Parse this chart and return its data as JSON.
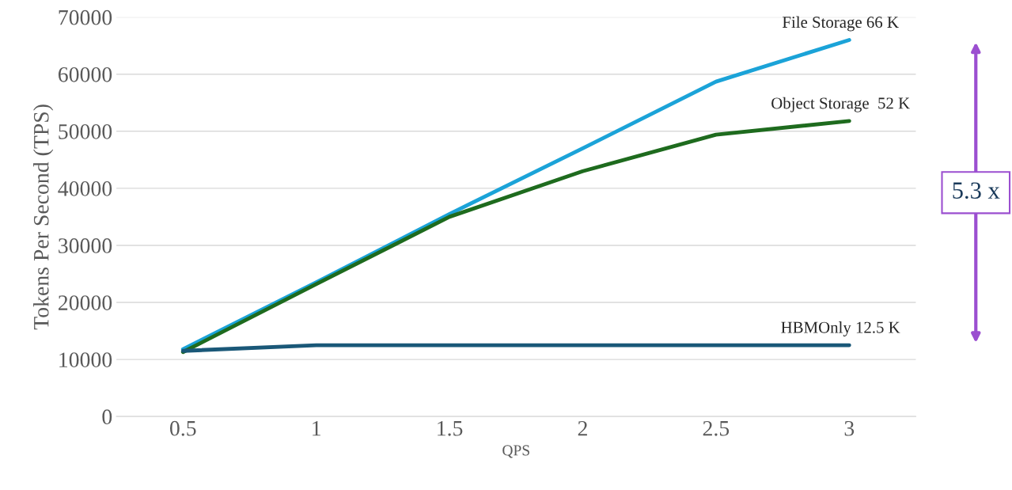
{
  "chart_data": {
    "type": "line",
    "xlabel": "QPS",
    "ylabel": "Tokens Per Second (TPS)",
    "categories": [
      "0.5",
      "1",
      "1.5",
      "2",
      "2.5",
      "3"
    ],
    "series": [
      {
        "name": "File Storage 66 K",
        "color": "#1ba3d8",
        "values": [
          11800,
          23500,
          35500,
          47000,
          58700,
          66000
        ]
      },
      {
        "name": "Object Storage  52 K",
        "color": "#1e6b1e",
        "values": [
          11300,
          23200,
          35000,
          43000,
          49400,
          51800
        ]
      },
      {
        "name": "HBMOnly 12.5 K",
        "color": "#1a5878",
        "values": [
          11500,
          12500,
          12500,
          12500,
          12500,
          12500
        ]
      }
    ],
    "ylim": [
      0,
      70000
    ],
    "yticks": [
      0,
      10000,
      20000,
      30000,
      40000,
      50000,
      60000,
      70000
    ],
    "grid": "y",
    "legend": false,
    "marker": "none",
    "line_style": "solid",
    "annotations": [
      "5.3 x"
    ]
  }
}
